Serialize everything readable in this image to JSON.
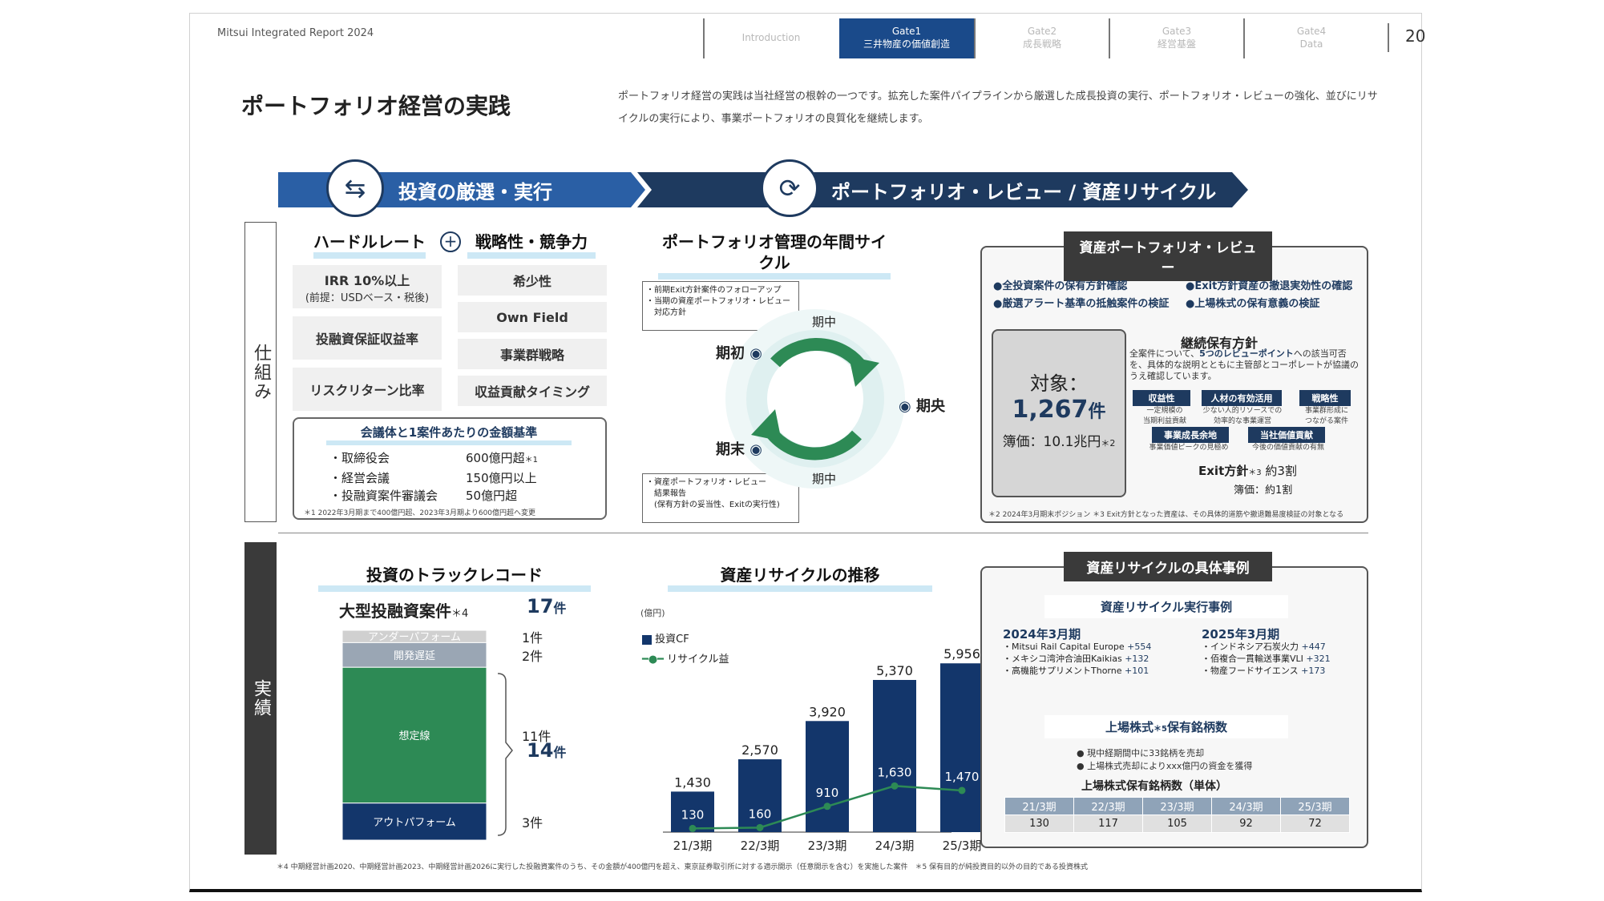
{
  "header": {
    "report_title": "Mitsui Integrated Report 2024",
    "tabs": [
      {
        "label": "Introduction"
      },
      {
        "label": "Gate1",
        "sub": "三井物産の価値創造"
      },
      {
        "label": "Gate2",
        "sub": "成長戦略"
      },
      {
        "label": "Gate3",
        "sub": "経営基盤"
      },
      {
        "label": "Gate4",
        "sub": "Data"
      }
    ],
    "page_number": "20"
  },
  "title": "ポートフォリオ経営の実践",
  "intro": "ポートフォリオ経営の実践は当社経営の根幹の一つです。拡充した案件パイプラインから厳選した成長投資の実行、ポートフォリオ・レビューの強化、並びにリサイクルの実行により、事業ポートフォリオの良質化を継続します。",
  "band": {
    "left": "投資の厳選・実行",
    "right": "ポートフォリオ・レビュー / 資産リサイクル"
  },
  "side": {
    "top": "仕組み",
    "bottom": "実績"
  },
  "criteria": {
    "head_left": "ハードルレート",
    "plus": "+",
    "head_right": "戦略性・競争力",
    "left_items": [
      {
        "main": "IRR 10%以上",
        "sub": "(前提：USDベース・税後)"
      },
      {
        "main": "投融資保証収益率"
      },
      {
        "main": "リスクリターン比率"
      }
    ],
    "right_items": [
      "希少性",
      "Own Field",
      "事業群戦略",
      "収益貢献タイミング"
    ]
  },
  "meeting": {
    "title": "会議体と1案件あたりの金額基準",
    "rows": [
      {
        "name": "・取締役会",
        "amount": "600億円超",
        "mark": "＊1"
      },
      {
        "name": "・経営会議",
        "amount": "150億円以上",
        "mark": ""
      },
      {
        "name": "・投融資案件審議会",
        "amount": "50億円超",
        "mark": ""
      }
    ],
    "note": "＊1 2022年3月期まで400億円超、2023年3月期より600億円超へ変更"
  },
  "cycle": {
    "title": "ポートフォリオ管理の年間サイクル",
    "top_box": "・前期Exit方針案件のフォローアップ\n・当期の資産ポートフォリオ・レビュー\n　対応方針",
    "bottom_box": "・資産ポートフォリオ・レビュー\n　結果報告\n　(保有方針の妥当性、Exitの実行性)",
    "start": "期初",
    "mid": "期央",
    "end": "期末",
    "midterm_top": "期中",
    "midterm_bottom": "期中"
  },
  "review": {
    "title": "資産ポートフォリオ・レビュー",
    "bullets": [
      "●全投資案件の保有方針確認",
      "●Exit方針資産の撤退実効性の確認",
      "●厳選アラート基準の抵触案件の検証",
      "●上場株式の保有意義の検証"
    ],
    "target_label": "対象：",
    "target_value": "1,267",
    "target_unit": "件",
    "book_label": "簿価：10.1兆円",
    "book_mark": "＊2",
    "hold_title": "継続保有方針",
    "hold_desc_a": "全案件について、",
    "hold_desc_b": "5つのレビューポイント",
    "hold_desc_c": "への該当可否を、具体的な説明とともに主管部とコーポレートが協議のうえ確認しています。",
    "points": [
      {
        "label": "収益性",
        "desc": "一定規模の\n当期利益貢献"
      },
      {
        "label": "人材の有効活用",
        "desc": "少ない人的リソースでの\n効率的な事業運営"
      },
      {
        "label": "戦略性",
        "desc": "事業群形成に\nつながる案件"
      },
      {
        "label": "事業成長余地",
        "desc": "事業価値ピークの見極め"
      },
      {
        "label": "当社価値貢献",
        "desc": "今後の価値貢献の有無"
      }
    ],
    "exit_label": "Exit方針",
    "exit_mark": "＊3",
    "exit_value": "約3割",
    "exit_book": "簿価：約1割",
    "note": "＊2 2024年3月期末ポジション ＊3 Exit方針となった資産は、その具体的道筋や撤退難易度検証の対象となる"
  },
  "track": {
    "title": "投資のトラックレコード",
    "sub": "大型投融資案件",
    "sub_mark": "＊4",
    "total": "17",
    "total_unit": "件",
    "segments": [
      {
        "label": "アンダーパフォーム",
        "count": "1件",
        "value": 1,
        "color": "#d0d0d0"
      },
      {
        "label": "開発遅延",
        "count": "2件",
        "value": 2,
        "color": "#9aa6b4"
      },
      {
        "label": "想定線",
        "count": "11件",
        "value": 11,
        "color": "#2d8a55"
      },
      {
        "label": "アウトパフォーム",
        "count": "3件",
        "value": 3,
        "color": "#13366b"
      }
    ],
    "group_total": "14",
    "group_unit": "件"
  },
  "chart_data": {
    "type": "bar",
    "title": "資産リサイクルの推移",
    "unit": "(億円)",
    "categories": [
      "21/3期",
      "22/3期",
      "23/3期",
      "24/3期",
      "25/3期"
    ],
    "series": [
      {
        "name": "投資CF",
        "type": "bar",
        "values": [
          1430,
          2570,
          3920,
          5370,
          5956
        ],
        "labels": [
          "1,430",
          "2,570",
          "3,920",
          "5,370",
          "5,956"
        ],
        "color": "#13366b"
      },
      {
        "name": "リサイクル益",
        "type": "line",
        "values": [
          130,
          160,
          910,
          1630,
          1470
        ],
        "labels": [
          "130",
          "160",
          "910",
          "1,630",
          "1,470"
        ],
        "color": "#2d8a55"
      }
    ]
  },
  "recycle": {
    "title": "資産リサイクルの具体事例",
    "sub": "資産リサイクル実行事例",
    "col1": {
      "year": "2024年3月期",
      "items": [
        {
          "name": "・Mitsui Rail Capital Europe",
          "val": "+554"
        },
        {
          "name": "・メキシコ湾沖合油田Kaikias",
          "val": "+132"
        },
        {
          "name": "・高機能サプリメントThorne",
          "val": "+101"
        }
      ]
    },
    "col2": {
      "year": "2025年3月期",
      "items": [
        {
          "name": "・インドネシア石炭火力",
          "val": "+447"
        },
        {
          "name": "・佰複合一貫輸送事業VLI",
          "val": "+321"
        },
        {
          "name": "・物産フードサイエンス",
          "val": "+173"
        }
      ]
    },
    "listed_title": "上場株式",
    "listed_mark": "＊5",
    "listed_title2": "保有銘柄数",
    "listed_bullets": [
      "● 現中経期間中に33銘柄を売却",
      "● 上場株式売却によりxxx億円の資金を獲得"
    ],
    "table_title": "上場株式保有銘柄数（単体）",
    "table_head": [
      "21/3期",
      "22/3期",
      "23/3期",
      "24/3期",
      "25/3期"
    ],
    "table_vals": [
      "130",
      "117",
      "105",
      "92",
      "72"
    ]
  },
  "footnote": "＊4 中期経営計画2020、中期経営計画2023、中期経営計画2026に実行した投融資案件のうち、その金額が400億円を超え、東京証券取引所に対する適示開示（任意開示を含む）を実施した案件　＊5 保有目的が純投資目的以外の目的である投資株式"
}
